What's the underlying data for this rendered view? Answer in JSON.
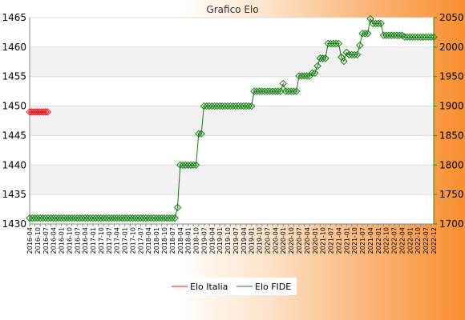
{
  "chart_data": {
    "type": "line",
    "title": "Grafico Elo",
    "ylim_left": [
      1430,
      1465
    ],
    "ylim_right": [
      1700,
      2050
    ],
    "yticks_left": [
      1430,
      1435,
      1440,
      1445,
      1450,
      1455,
      1460,
      1465
    ],
    "yticks_right": [
      1700,
      1750,
      1800,
      1850,
      1900,
      1950,
      2000,
      2050
    ],
    "x_first_label": "2016-04",
    "x_last_label": "2022-12",
    "grid": true,
    "legend_position": "bottom",
    "colors": {
      "italia": "#e8141b",
      "fide": "#157d12",
      "band": "#f2f2f2",
      "tick_right": "#2e8b1a"
    },
    "series": [
      {
        "name": "Elo Italia",
        "axis": "left",
        "values": [
          1449,
          1449,
          1449,
          1449,
          1449,
          1449,
          1449,
          1449,
          1449,
          1449
        ]
      },
      {
        "name": "Elo FIDE",
        "axis": "right",
        "values": [
          1710,
          1710,
          1710,
          1710,
          1710,
          1710,
          1710,
          1710,
          1710,
          1710,
          1710,
          1710,
          1710,
          1710,
          1710,
          1710,
          1710,
          1710,
          1710,
          1710,
          1710,
          1710,
          1710,
          1710,
          1710,
          1710,
          1710,
          1710,
          1710,
          1710,
          1710,
          1710,
          1710,
          1710,
          1710,
          1710,
          1710,
          1710,
          1710,
          1710,
          1710,
          1710,
          1710,
          1710,
          1710,
          1710,
          1710,
          1710,
          1710,
          1710,
          1710,
          1710,
          1710,
          1710,
          1710,
          1710,
          1728,
          1800,
          1800,
          1800,
          1800,
          1800,
          1800,
          1800,
          1853,
          1853,
          1900,
          1900,
          1900,
          1900,
          1900,
          1900,
          1900,
          1900,
          1900,
          1900,
          1900,
          1900,
          1900,
          1900,
          1900,
          1900,
          1900,
          1900,
          1900,
          1925,
          1925,
          1925,
          1925,
          1925,
          1925,
          1925,
          1925,
          1925,
          1925,
          1925,
          1938,
          1925,
          1925,
          1925,
          1925,
          1925,
          1951,
          1951,
          1951,
          1951,
          1951,
          1956,
          1956,
          1968,
          1981,
          1981,
          1981,
          2006,
          2006,
          2006,
          2006,
          2006,
          1983,
          1976,
          1991,
          1987,
          1987,
          1987,
          1987,
          2003,
          2023,
          2023,
          2023,
          2048,
          2040,
          2040,
          2040,
          2040,
          2020,
          2020,
          2020,
          2020,
          2020,
          2020,
          2020,
          2020,
          2017,
          2017,
          2017,
          2017,
          2017,
          2017,
          2017,
          2017,
          2017,
          2017,
          2017,
          2017
        ]
      }
    ]
  }
}
